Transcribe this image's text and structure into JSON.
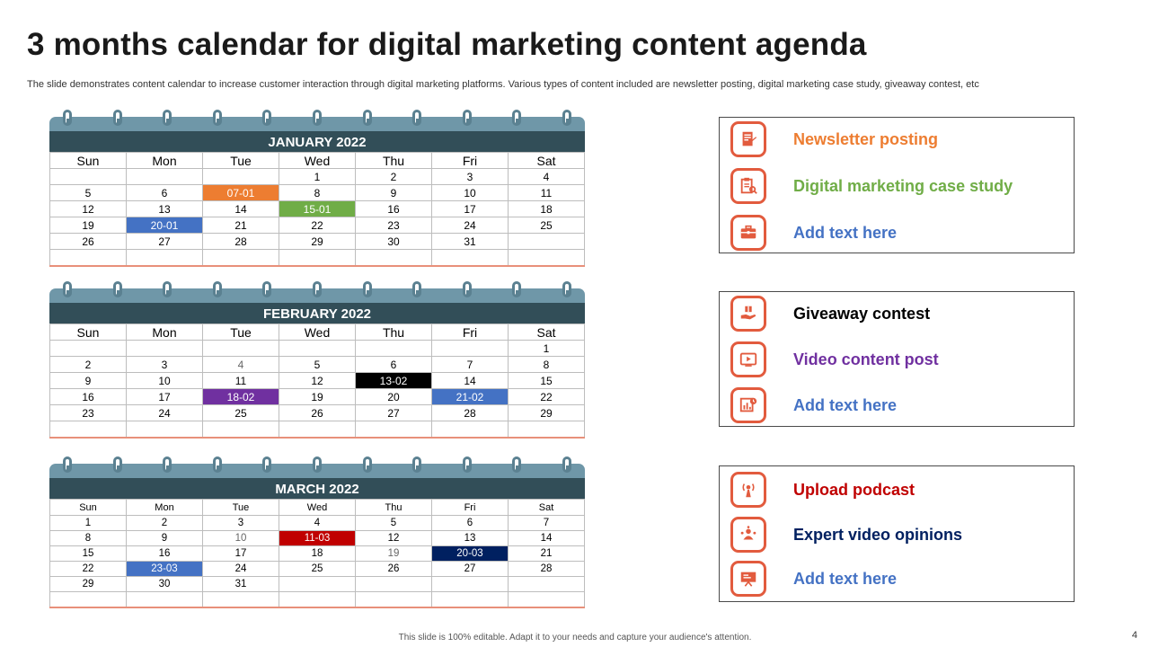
{
  "header": {
    "title": "3 months calendar for digital marketing content agenda",
    "subtitle": "The slide demonstrates content calendar to increase customer interaction through digital marketing platforms. Various types of content included are newsletter posting, digital marketing case study, giveaway contest, etc"
  },
  "weekdays": [
    "Sun",
    "Mon",
    "Tue",
    "Wed",
    "Thu",
    "Fri",
    "Sat"
  ],
  "calendars": [
    {
      "month": "JANUARY 2022",
      "weeks": [
        [
          "",
          "",
          "",
          "",
          "1",
          "2",
          "3"
        ],
        [
          "4",
          "",
          "",
          "",
          "",
          "",
          ""
        ],
        [
          "",
          "",
          "",
          "",
          "",
          "",
          ""
        ]
      ]
    }
  ],
  "jan": {
    "month": "JANUARY 2022",
    "rows": [
      [
        "",
        "",
        "",
        "1",
        "2",
        "3",
        "4"
      ],
      [
        "5",
        "6",
        "07-01",
        "8",
        "9",
        "10",
        "11"
      ],
      [
        "12",
        "13",
        "14",
        "15-01",
        "16",
        "17",
        "18"
      ],
      [
        "19",
        "20-01",
        "21",
        "22",
        "23",
        "24",
        "25"
      ],
      [
        "26",
        "27",
        "28",
        "29",
        "30",
        "31",
        ""
      ],
      [
        "",
        "",
        "",
        "",
        "",
        "",
        ""
      ]
    ]
  },
  "feb": {
    "month": "FEBRUARY 2022",
    "rows": [
      [
        "",
        "",
        "",
        "",
        "",
        "",
        "1"
      ],
      [
        "2",
        "3",
        "4",
        "5",
        "6",
        "7",
        "8"
      ],
      [
        "9",
        "10",
        "11",
        "12",
        "13-02",
        "14",
        "15"
      ],
      [
        "16",
        "17",
        "18-02",
        "19",
        "20",
        "21-02",
        "22"
      ],
      [
        "23",
        "24",
        "25",
        "26",
        "27",
        "28",
        "29"
      ],
      [
        "",
        "",
        "",
        "",
        "",
        "",
        ""
      ]
    ]
  },
  "mar": {
    "month": "MARCH 2022",
    "rows": [
      [
        "1",
        "2",
        "3",
        "4",
        "5",
        "6",
        "7"
      ],
      [
        "8",
        "9",
        "10",
        "11-03",
        "12",
        "13",
        "14"
      ],
      [
        "15",
        "16",
        "17",
        "18",
        "19",
        "20-03",
        "21"
      ],
      [
        "22",
        "23-03",
        "24",
        "25",
        "26",
        "27",
        "28"
      ],
      [
        "29",
        "30",
        "31",
        "",
        "",
        "",
        ""
      ],
      [
        "",
        "",
        "",
        "",
        "",
        "",
        ""
      ]
    ]
  },
  "highlight_colors": {
    "newsletter": "#ed7d31",
    "case_study": "#70ad47",
    "add_text": "#4472c4",
    "giveaway": "#000000",
    "video": "#7030a0",
    "podcast": "#c00000",
    "expert": "#002060",
    "icon_border": "#e25b3e"
  },
  "legend": {
    "group1": [
      {
        "label": "Newsletter posting",
        "icon": "newsletter-icon",
        "color": "#ed7d31"
      },
      {
        "label": "Digital marketing case study",
        "icon": "case-study-icon",
        "color": "#70ad47"
      },
      {
        "label": "Add text here",
        "icon": "briefcase-icon",
        "color": "#4472c4"
      }
    ],
    "group2": [
      {
        "label": "Giveaway contest",
        "icon": "gift-hand-icon",
        "color": "#000000"
      },
      {
        "label": "Video content post",
        "icon": "video-icon",
        "color": "#7030a0"
      },
      {
        "label": "Add text here",
        "icon": "analytics-icon",
        "color": "#4472c4"
      }
    ],
    "group3": [
      {
        "label": "Upload podcast",
        "icon": "podcast-icon",
        "color": "#c00000"
      },
      {
        "label": "Expert video opinions",
        "icon": "expert-icon",
        "color": "#002060"
      },
      {
        "label": "Add text here",
        "icon": "presentation-icon",
        "color": "#4472c4"
      }
    ]
  },
  "footer": {
    "note": "This slide is 100% editable. Adapt it to your needs and capture your audience's attention.",
    "page": "4"
  }
}
